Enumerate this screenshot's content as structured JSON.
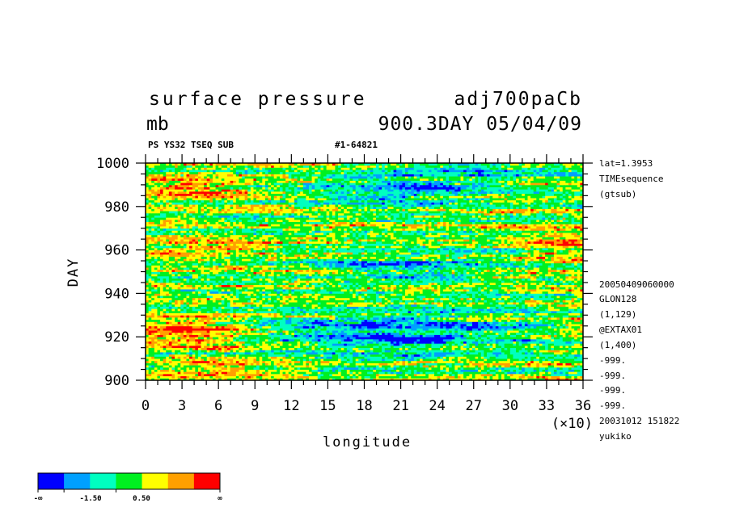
{
  "header": {
    "title_left": "surface pressure",
    "title_right": "adj700paCb",
    "unit": "mb",
    "run_info": "900.3DAY 05/04/09",
    "subtitle_left": "PS YS32 TSEQ SUB",
    "subtitle_right": "#1-64821"
  },
  "side_info": {
    "top": [
      "lat=1.3953",
      "TIMEsequence",
      "(gtsub)"
    ],
    "bottom": [
      "20050409060000",
      "GLON128",
      "(1,129)",
      "@EXTAX01",
      "(1,400)",
      "-999.",
      "-999.",
      "-999.",
      "-999.",
      "20031012 151822",
      "yukiko"
    ]
  },
  "colorbar": {
    "colors": [
      "#0000ff",
      "#00a0ff",
      "#00ffc0",
      "#00f020",
      "#ffff00",
      "#ffa000",
      "#ff0000"
    ],
    "labels": [
      "-∞",
      "-1.50",
      "0.50",
      "∞"
    ]
  },
  "chart_data": {
    "type": "heatmap",
    "title": "surface pressure",
    "xlabel": "longitude",
    "ylabel": "DAY",
    "x_multiplier_label": "(×10)",
    "xlim": [
      0,
      36
    ],
    "ylim": [
      900,
      1000
    ],
    "x_ticks": [
      "0",
      "3",
      "6",
      "9",
      "12",
      "15",
      "18",
      "21",
      "24",
      "27",
      "30",
      "33",
      "36"
    ],
    "y_ticks": [
      "900",
      "920",
      "940",
      "960",
      "980",
      "1000"
    ],
    "color_levels": [
      "-∞",
      "-1.50",
      "0.50",
      "∞"
    ],
    "colors": [
      "#0000ff",
      "#00a0ff",
      "#00ffc0",
      "#00f020",
      "#ffff00",
      "#ffa000",
      "#ff0000"
    ]
  }
}
